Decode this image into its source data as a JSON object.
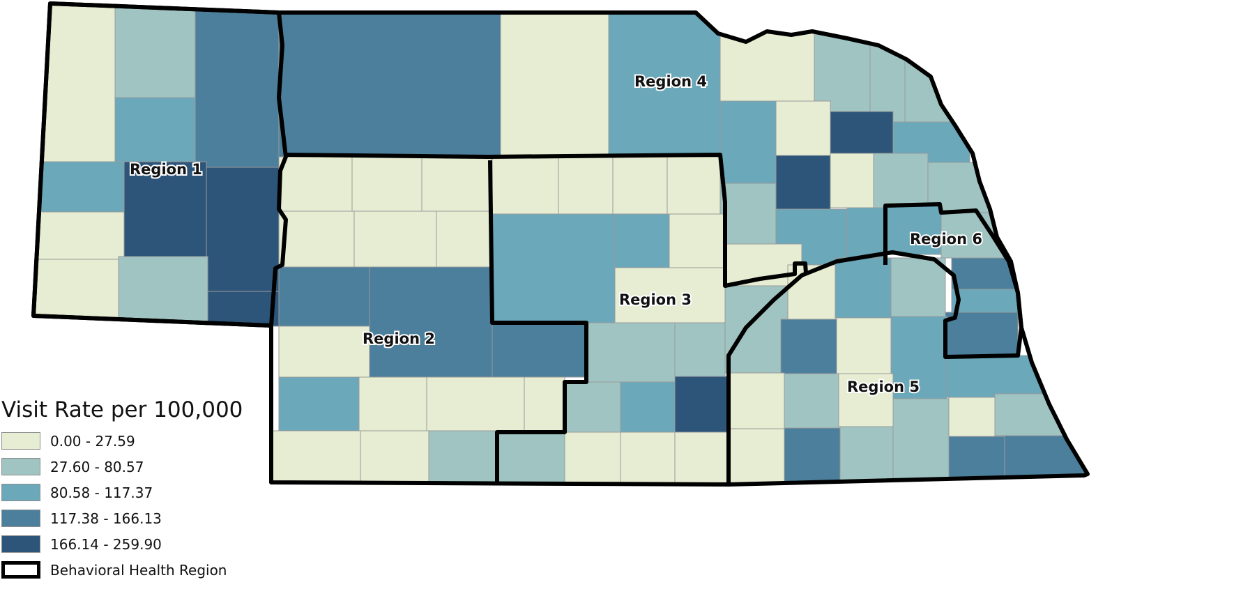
{
  "legend": {
    "title": "Visit Rate per 100,000",
    "classes": [
      {
        "label": "0.00 - 27.59",
        "color": "#e7edd3"
      },
      {
        "label": "27.60 - 80.57",
        "color": "#9fc4c2"
      },
      {
        "label": "80.58 - 117.37",
        "color": "#6aa8ba"
      },
      {
        "label": "117.38 - 166.13",
        "color": "#4c7f9c"
      },
      {
        "label": "166.14 - 259.90",
        "color": "#2d5579"
      }
    ],
    "border_label": "Behavioral Health Region"
  },
  "regions": [
    {
      "label": "Region 1"
    },
    {
      "label": "Region 2"
    },
    {
      "label": "Region 3"
    },
    {
      "label": "Region 4"
    },
    {
      "label": "Region 5"
    },
    {
      "label": "Region 6"
    }
  ],
  "colors": {
    "border": "#000000",
    "county_line": "#9a9a9a"
  }
}
